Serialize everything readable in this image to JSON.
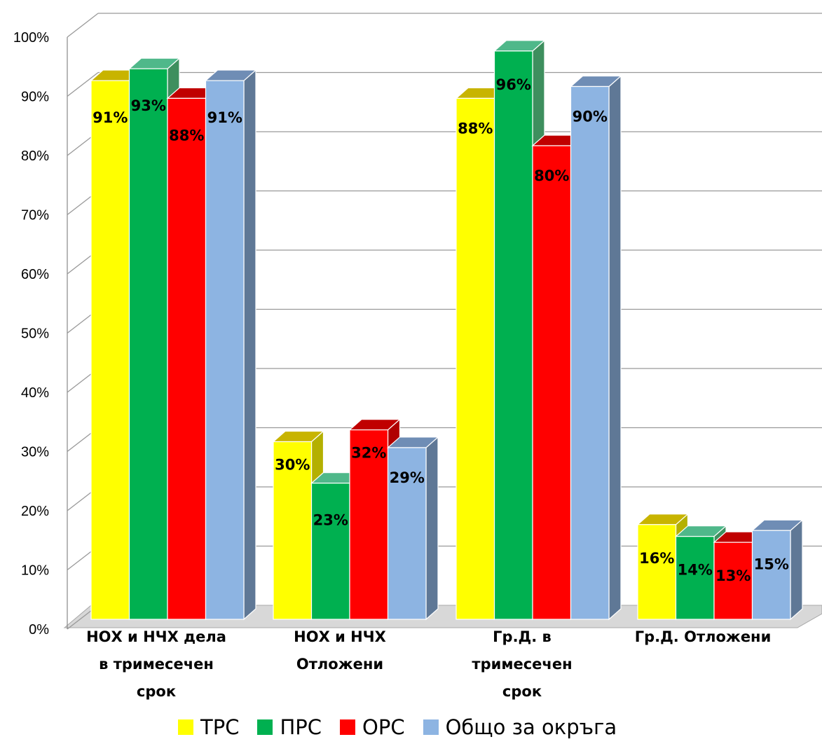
{
  "chart_data": {
    "type": "bar",
    "title": "",
    "xlabel": "",
    "ylabel": "",
    "ylim": [
      0,
      100
    ],
    "yticks": [
      "0%",
      "10%",
      "20%",
      "30%",
      "40%",
      "50%",
      "60%",
      "70%",
      "80%",
      "90%",
      "100%"
    ],
    "grid": true,
    "legend_position": "bottom",
    "categories": [
      [
        "НОХ и НЧХ дела",
        "в тримесечен",
        "срок"
      ],
      [
        "НОХ и НЧХ",
        "Отложени"
      ],
      [
        "Гр.Д. в",
        "тримесечен",
        "срок"
      ],
      [
        "Гр.Д. Отложени"
      ]
    ],
    "series": [
      {
        "name": "ТРС",
        "color": "#FFFF00",
        "top": "#C8B400",
        "side": "#B4B000",
        "values": [
          91,
          30,
          88,
          16
        ],
        "labels": [
          "91%",
          "30%",
          "88%",
          "16%"
        ]
      },
      {
        "name": "ПРС",
        "color": "#00B050",
        "top": "#4FB88A",
        "side": "#3E8F5E",
        "values": [
          93,
          23,
          96,
          14
        ],
        "labels": [
          "93%",
          "23%",
          "96%",
          "14%"
        ]
      },
      {
        "name": "ОРС",
        "color": "#FF0000",
        "top": "#C00000",
        "side": "#B00000",
        "values": [
          88,
          32,
          80,
          13
        ],
        "labels": [
          "88%",
          "32%",
          "80%",
          "13%"
        ]
      },
      {
        "name": "Общо за окръга",
        "color": "#8DB4E2",
        "top": "#6F8DB5",
        "side": "#5F7896",
        "values": [
          91,
          29,
          90,
          15
        ],
        "labels": [
          "91%",
          "29%",
          "90%",
          "15%"
        ]
      }
    ]
  }
}
